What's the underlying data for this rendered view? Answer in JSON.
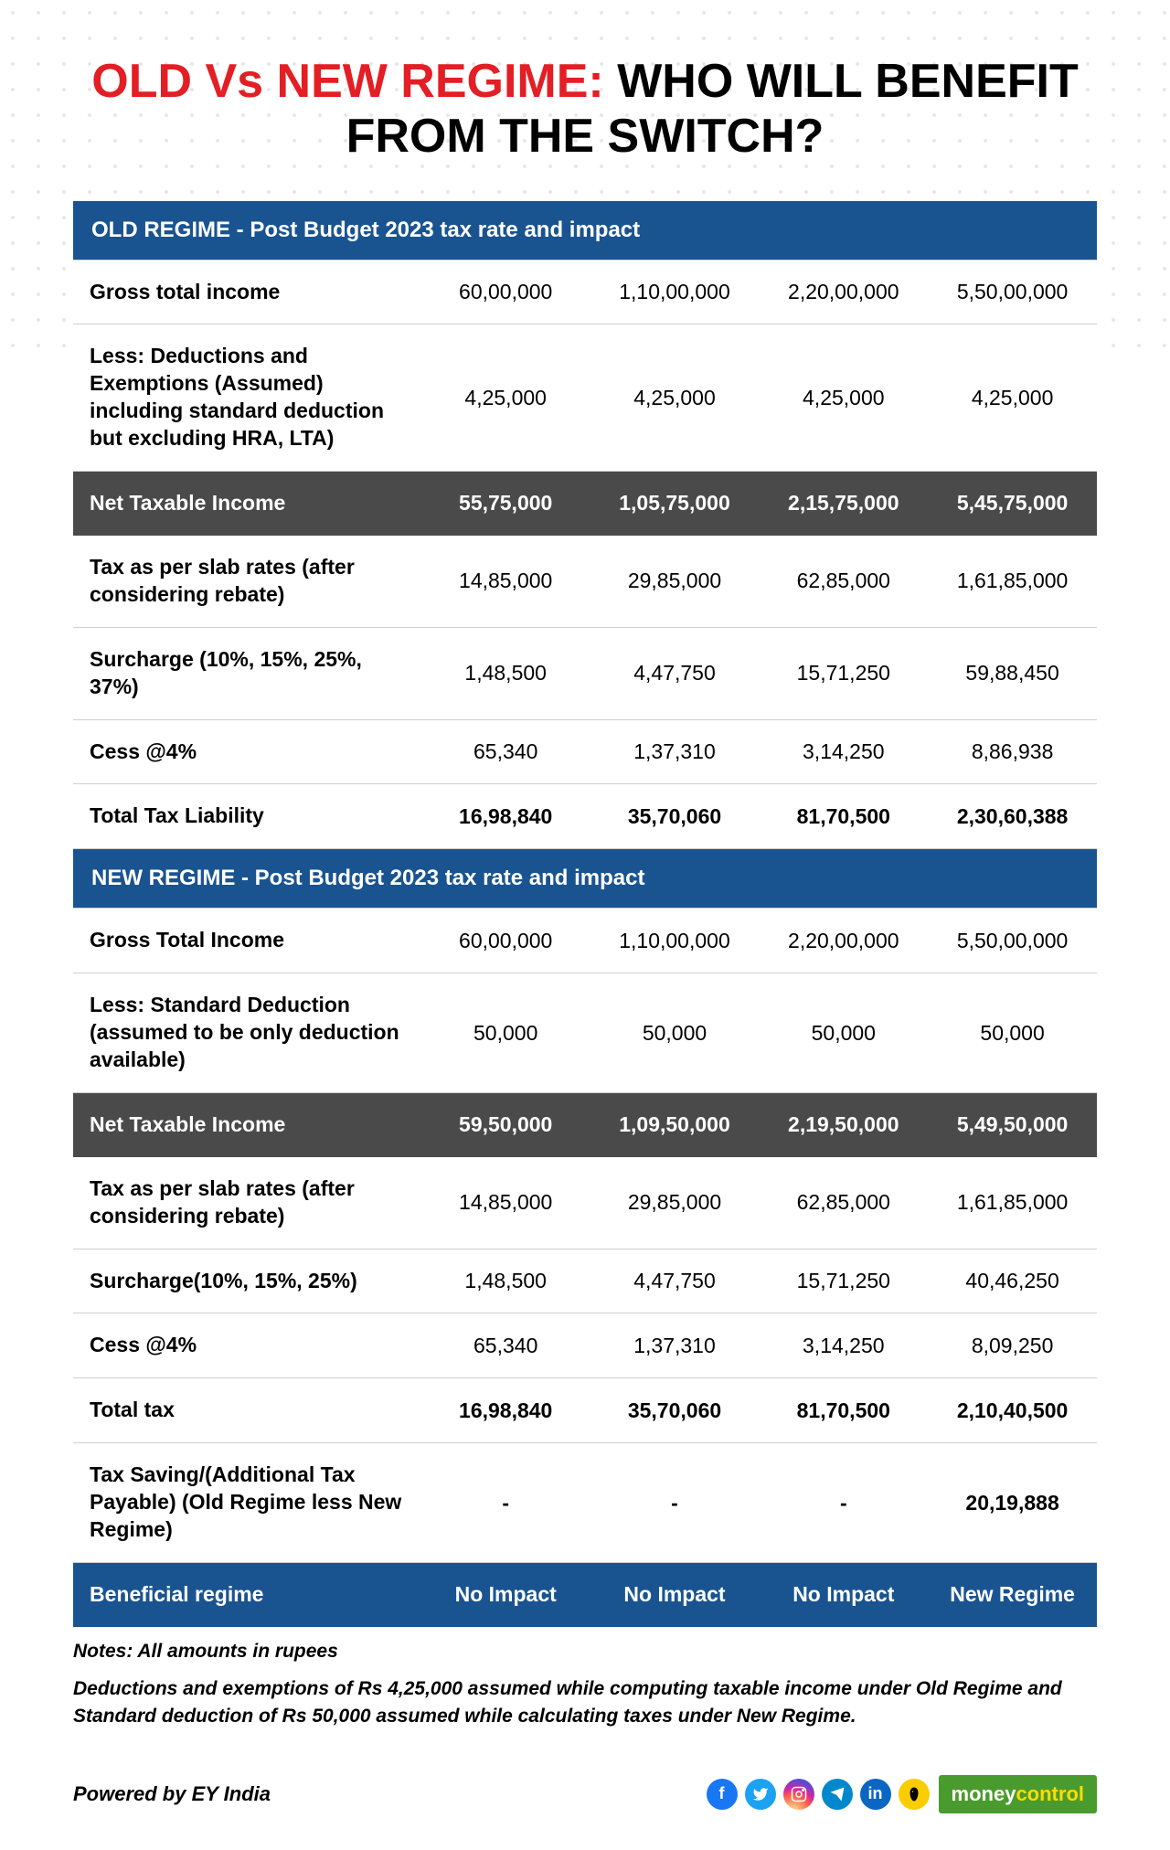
{
  "title_accent": "OLD Vs NEW REGIME:",
  "title_rest": " WHO WILL BENEFIT FROM THE SWITCH?",
  "colors": {
    "accent_red": "#e31e24",
    "header_blue": "#1a5490",
    "highlight_dark": "#4a4a4a",
    "brand_green": "#4a9b2e"
  },
  "sections": {
    "old": {
      "header": "OLD REGIME - Post Budget 2023 tax rate and impact",
      "rows": [
        {
          "label": "Gross total income",
          "vals": [
            "60,00,000",
            "1,10,00,000",
            "2,20,00,000",
            "5,50,00,000"
          ]
        },
        {
          "label": "Less: Deductions and Exemptions (Assumed) including standard deduction but excluding HRA, LTA)",
          "vals": [
            "4,25,000",
            "4,25,000",
            "4,25,000",
            "4,25,000"
          ]
        },
        {
          "label": "Net Taxable Income",
          "vals": [
            "55,75,000",
            "1,05,75,000",
            "2,15,75,000",
            "5,45,75,000"
          ],
          "style": "dark"
        },
        {
          "label": "Tax as per slab rates (after considering rebate)",
          "vals": [
            "14,85,000",
            "29,85,000",
            "62,85,000",
            "1,61,85,000"
          ]
        },
        {
          "label": "Surcharge (10%, 15%, 25%, 37%)",
          "vals": [
            "1,48,500",
            "4,47,750",
            "15,71,250",
            "59,88,450"
          ]
        },
        {
          "label": "Cess @4%",
          "vals": [
            "65,340",
            "1,37,310",
            "3,14,250",
            "8,86,938"
          ]
        },
        {
          "label": "Total Tax Liability",
          "vals": [
            "16,98,840",
            "35,70,060",
            "81,70,500",
            "2,30,60,388"
          ],
          "style": "bold"
        }
      ]
    },
    "new": {
      "header": "NEW REGIME - Post Budget 2023 tax rate and impact",
      "rows": [
        {
          "label": "Gross Total Income",
          "vals": [
            "60,00,000",
            "1,10,00,000",
            "2,20,00,000",
            "5,50,00,000"
          ]
        },
        {
          "label": "Less: Standard Deduction (assumed to be only deduction available)",
          "vals": [
            "50,000",
            "50,000",
            "50,000",
            "50,000"
          ]
        },
        {
          "label": "Net Taxable Income",
          "vals": [
            "59,50,000",
            "1,09,50,000",
            "2,19,50,000",
            "5,49,50,000"
          ],
          "style": "dark"
        },
        {
          "label": "Tax as per slab rates (after considering rebate)",
          "vals": [
            "14,85,000",
            "29,85,000",
            "62,85,000",
            "1,61,85,000"
          ]
        },
        {
          "label": "Surcharge(10%, 15%, 25%)",
          "vals": [
            "1,48,500",
            "4,47,750",
            "15,71,250",
            "40,46,250"
          ]
        },
        {
          "label": "Cess @4%",
          "vals": [
            "65,340",
            "1,37,310",
            "3,14,250",
            "8,09,250"
          ]
        },
        {
          "label": "Total tax",
          "vals": [
            "16,98,840",
            "35,70,060",
            "81,70,500",
            "2,10,40,500"
          ],
          "style": "bold"
        },
        {
          "label": "Tax Saving/(Additional Tax Payable) (Old Regime less New Regime)",
          "vals": [
            "-",
            "-",
            "-",
            "20,19,888"
          ],
          "style": "bold"
        },
        {
          "label": "Beneficial regime",
          "vals": [
            "No Impact",
            "No Impact",
            "No Impact",
            "New Regime"
          ],
          "style": "blue"
        }
      ]
    }
  },
  "notes_line1": "Notes: All amounts in rupees",
  "notes_line2": "Deductions and exemptions of Rs 4,25,000 assumed while computing taxable income under Old Regime and Standard deduction of Rs 50,000 assumed while calculating taxes under New Regime.",
  "footer": {
    "powered": "Powered by EY India",
    "brand_1": "money",
    "brand_2": "control",
    "social": [
      "facebook",
      "twitter",
      "instagram",
      "telegram",
      "linkedin",
      "koo"
    ]
  }
}
